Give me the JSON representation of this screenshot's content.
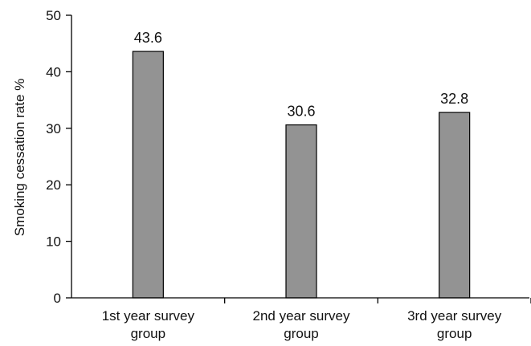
{
  "chart_data": {
    "type": "bar",
    "title": "",
    "xlabel": "",
    "ylabel": "Smoking cessation rate %",
    "ylim": [
      0,
      50
    ],
    "yticks": [
      0,
      10,
      20,
      30,
      40,
      50
    ],
    "grid": false,
    "legend": "none",
    "categories": [
      [
        "1st year survey",
        "group"
      ],
      [
        "2nd year survey",
        "group"
      ],
      [
        "3rd year survey",
        "group"
      ]
    ],
    "values": [
      43.6,
      30.6,
      32.8
    ],
    "data_labels": [
      "43.6",
      "30.6",
      "32.8"
    ],
    "colors": {
      "bar_fill": "#939393",
      "bar_stroke": "#000000",
      "axis": "#000000"
    }
  }
}
